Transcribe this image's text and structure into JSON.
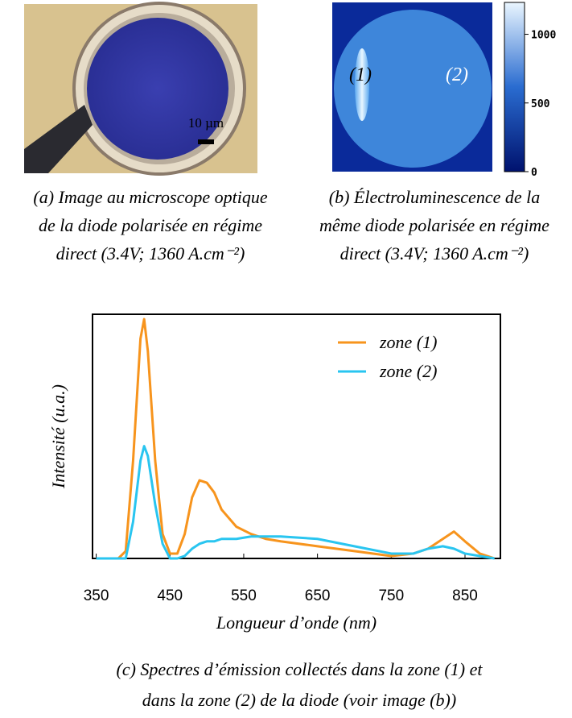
{
  "panels": {
    "a": {
      "scale_bar": "10 µm",
      "caption": [
        "(a) Image au microscope optique",
        "de la diode polarisée en régime",
        "direct (3.4V; 1360 A.cm⁻²)"
      ]
    },
    "b": {
      "zone_labels": [
        "(1)",
        "(2)"
      ],
      "colorbar": {
        "lim": [
          0,
          1232
        ],
        "ticks": [
          0,
          500,
          1000
        ]
      },
      "caption": [
        "(b) Électroluminescence de la",
        "même diode polarisée en régime",
        "direct (3.4V; 1360 A.cm⁻²)"
      ]
    },
    "c": {
      "caption": [
        "(c) Spectres d’émission collectés dans la zone (1) et",
        "dans la zone (2) de la diode (voir image (b))"
      ]
    }
  },
  "chart_data": {
    "type": "line",
    "x_label": "Longueur d’onde (nm)",
    "y_label": "Intensité (u.a.)",
    "x": [
      350,
      380,
      390,
      400,
      410,
      415,
      420,
      430,
      440,
      450,
      460,
      470,
      480,
      490,
      500,
      510,
      520,
      540,
      560,
      580,
      600,
      650,
      700,
      750,
      780,
      800,
      820,
      835,
      850,
      870,
      890
    ],
    "series": [
      {
        "name": "zone (1)",
        "color": "#f7941d",
        "values": [
          0,
          0,
          3,
          40,
          90,
          98,
          85,
          40,
          10,
          2,
          2,
          10,
          25,
          32,
          31,
          27,
          20,
          13,
          10,
          8,
          7,
          5,
          3,
          1,
          2,
          4,
          8,
          11,
          7,
          2,
          0
        ]
      },
      {
        "name": "zone (2)",
        "color": "#29c5f0",
        "values": [
          0,
          0,
          0,
          15,
          40,
          46,
          42,
          22,
          6,
          0,
          0,
          1,
          4,
          6,
          7,
          7,
          8,
          8,
          9,
          9,
          9,
          8,
          5,
          2,
          2,
          4,
          5,
          4,
          2,
          1,
          0
        ]
      }
    ],
    "xlim": [
      345,
      898
    ],
    "ylim": [
      0,
      100
    ],
    "xticks": [
      350,
      450,
      550,
      650,
      750,
      850
    ],
    "legend": "upper right"
  }
}
